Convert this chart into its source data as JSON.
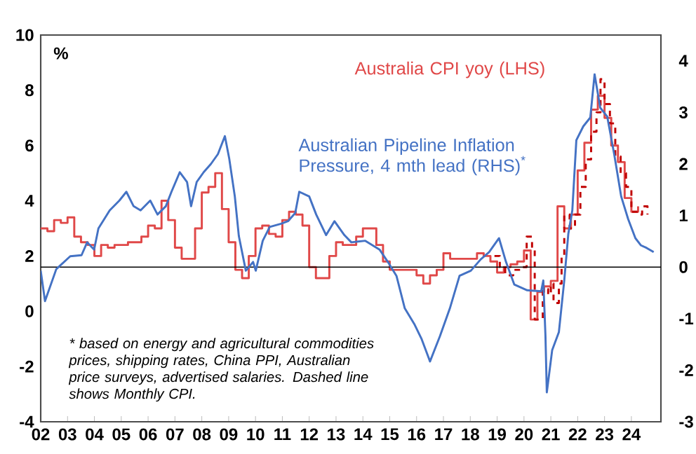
{
  "chart_data": {
    "type": "line",
    "ylabel": "%",
    "annotations": [
      "* based on energy and agricultural commodities prices, shipping rates, China PPI, Australian price surveys, advertised salaries. Dashed line shows Monthly CPI."
    ],
    "xlim": [
      2002,
      2025.1
    ],
    "xticks": [
      {
        "value": 2002,
        "label": "02"
      },
      {
        "value": 2003,
        "label": "03"
      },
      {
        "value": 2004,
        "label": "04"
      },
      {
        "value": 2005,
        "label": "05"
      },
      {
        "value": 2006,
        "label": "06"
      },
      {
        "value": 2007,
        "label": "07"
      },
      {
        "value": 2008,
        "label": "08"
      },
      {
        "value": 2009,
        "label": "09"
      },
      {
        "value": 2010,
        "label": "10"
      },
      {
        "value": 2011,
        "label": "11"
      },
      {
        "value": 2012,
        "label": "12"
      },
      {
        "value": 2013,
        "label": "13"
      },
      {
        "value": 2014,
        "label": "14"
      },
      {
        "value": 2015,
        "label": "15"
      },
      {
        "value": 2016,
        "label": "16"
      },
      {
        "value": 2017,
        "label": "17"
      },
      {
        "value": 2018,
        "label": "18"
      },
      {
        "value": 2019,
        "label": "19"
      },
      {
        "value": 2020,
        "label": "20"
      },
      {
        "value": 2021,
        "label": "21"
      },
      {
        "value": 2022,
        "label": "22"
      },
      {
        "value": 2023,
        "label": "23"
      },
      {
        "value": 2024,
        "label": "24"
      }
    ],
    "ylim": [
      -4,
      10
    ],
    "yticks": [
      -4,
      -2,
      0,
      2,
      4,
      6,
      8,
      10
    ],
    "y2lim": [
      -3,
      4.5
    ],
    "y2ticks": [
      -3,
      -2,
      -1,
      0,
      1,
      2,
      3,
      4
    ],
    "ref_lines": [
      {
        "axis": "y2",
        "value": 0,
        "color": "#000000"
      }
    ],
    "series": [
      {
        "name": "Australia CPI yoy (LHS)",
        "type": "step",
        "color": "#e04848",
        "x": [
          2002.0,
          2002.25,
          2002.5,
          2002.75,
          2003.0,
          2003.25,
          2003.5,
          2003.75,
          2004.0,
          2004.25,
          2004.5,
          2004.75,
          2005.0,
          2005.25,
          2005.5,
          2005.75,
          2006.0,
          2006.25,
          2006.5,
          2006.75,
          2007.0,
          2007.25,
          2007.5,
          2007.75,
          2008.0,
          2008.25,
          2008.5,
          2008.75,
          2009.0,
          2009.25,
          2009.5,
          2009.75,
          2010.0,
          2010.25,
          2010.5,
          2010.75,
          2011.0,
          2011.25,
          2011.5,
          2011.75,
          2012.0,
          2012.25,
          2012.5,
          2012.75,
          2013.0,
          2013.25,
          2013.5,
          2013.75,
          2014.0,
          2014.25,
          2014.5,
          2014.75,
          2015.0,
          2015.25,
          2015.5,
          2015.75,
          2016.0,
          2016.25,
          2016.5,
          2016.75,
          2017.0,
          2017.25,
          2017.5,
          2017.75,
          2018.0,
          2018.25,
          2018.5,
          2018.75,
          2019.0,
          2019.25,
          2019.5,
          2019.75,
          2020.0,
          2020.25,
          2020.5,
          2020.75,
          2021.0,
          2021.25,
          2021.5,
          2021.75,
          2022.0,
          2022.25,
          2022.5,
          2022.75,
          2023.0,
          2023.25,
          2023.5,
          2023.75,
          2024.0,
          2024.25
        ],
        "values": [
          3.0,
          2.9,
          3.3,
          3.2,
          3.4,
          2.7,
          2.5,
          2.4,
          2.0,
          2.4,
          2.3,
          2.4,
          2.4,
          2.5,
          2.5,
          2.7,
          3.1,
          3.0,
          4.0,
          3.3,
          2.3,
          1.9,
          1.9,
          3.0,
          4.3,
          4.5,
          5.0,
          3.7,
          2.5,
          1.5,
          1.2,
          2.0,
          3.0,
          3.1,
          2.8,
          2.7,
          3.3,
          3.6,
          3.5,
          3.1,
          1.6,
          1.2,
          1.2,
          2.0,
          2.5,
          2.4,
          2.4,
          2.7,
          3.0,
          3.0,
          2.4,
          1.8,
          1.5,
          1.5,
          1.5,
          1.5,
          1.3,
          1.0,
          1.3,
          1.5,
          2.1,
          1.9,
          1.9,
          1.9,
          1.9,
          2.1,
          2.0,
          1.8,
          1.4,
          1.6,
          1.7,
          1.8,
          2.2,
          -0.3,
          0.7,
          0.9,
          1.1,
          3.8,
          3.0,
          3.5,
          5.1,
          6.1,
          7.3,
          7.8,
          7.0,
          6.0,
          5.4,
          4.1,
          3.6,
          3.8
        ]
      },
      {
        "type": "step",
        "line_style": "dashed",
        "color": "#c00000",
        "x": [
          2018.9,
          2019.1,
          2019.3,
          2019.6,
          2019.9,
          2020.1,
          2020.3,
          2020.4,
          2020.6,
          2020.7,
          2020.9,
          2021.0,
          2021.1,
          2021.3,
          2021.4,
          2021.5,
          2021.7,
          2021.9,
          2022.1,
          2022.3,
          2022.5,
          2022.7,
          2022.85,
          2023.0,
          2023.2,
          2023.4,
          2023.6,
          2023.8,
          2024.0,
          2024.2,
          2024.4,
          2024.6
        ],
        "values": [
          2.0,
          1.6,
          1.3,
          1.5,
          1.6,
          2.7,
          2.2,
          -0.3,
          -0.3,
          0.8,
          0.6,
          1.0,
          0.3,
          1.0,
          2.0,
          3.5,
          3.0,
          3.5,
          4.5,
          5.5,
          6.5,
          7.2,
          8.4,
          7.5,
          6.8,
          5.6,
          5.0,
          4.5,
          3.6,
          3.5,
          3.8,
          3.5
        ]
      },
      {
        "name": "Australian Pipeline Inflation Pressure, 4 mth lead (RHS)$^{*}$",
        "type": "line",
        "axis": "y2",
        "color": "#4472c4",
        "x": [
          2002.0,
          2002.16,
          2002.58,
          2003.1,
          2003.52,
          2003.73,
          2003.99,
          2004.15,
          2004.57,
          2004.93,
          2005.19,
          2005.46,
          2005.72,
          2006.08,
          2006.35,
          2006.66,
          2006.87,
          2007.18,
          2007.45,
          2007.6,
          2007.81,
          2008.07,
          2008.34,
          2008.6,
          2008.86,
          2009.02,
          2009.23,
          2009.38,
          2009.64,
          2009.91,
          2010.01,
          2010.27,
          2010.53,
          2010.95,
          2011.21,
          2011.48,
          2011.63,
          2012.0,
          2012.26,
          2012.63,
          2012.94,
          2013.31,
          2013.57,
          2014.09,
          2014.62,
          2014.93,
          2015.25,
          2015.56,
          2015.93,
          2016.19,
          2016.5,
          2016.87,
          2017.24,
          2017.6,
          2018.02,
          2018.39,
          2018.7,
          2019.07,
          2019.33,
          2019.64,
          2020.12,
          2020.64,
          2020.72,
          2020.8,
          2020.85,
          2021.05,
          2021.3,
          2021.5,
          2021.65,
          2021.8,
          2021.95,
          2022.21,
          2022.47,
          2022.63,
          2022.84,
          2023.1,
          2023.36,
          2023.62,
          2023.88,
          2024.15,
          2024.36,
          2024.57,
          2024.83
        ],
        "values": [
          -0.07,
          -0.66,
          -0.04,
          0.21,
          0.23,
          0.48,
          0.34,
          0.75,
          1.1,
          1.29,
          1.46,
          1.18,
          1.1,
          1.29,
          1.02,
          1.18,
          1.46,
          1.84,
          1.65,
          1.18,
          1.65,
          1.84,
          2.0,
          2.19,
          2.54,
          2.11,
          1.37,
          0.6,
          -0.07,
          0.1,
          -0.07,
          0.51,
          0.78,
          0.84,
          0.89,
          1.05,
          1.46,
          1.37,
          1.02,
          0.62,
          0.89,
          0.62,
          0.48,
          0.51,
          0.34,
          0.1,
          -0.17,
          -0.8,
          -1.12,
          -1.4,
          -1.83,
          -1.34,
          -0.8,
          -0.17,
          -0.07,
          0.15,
          0.29,
          0.56,
          0.1,
          -0.34,
          -0.45,
          -0.47,
          -0.26,
          -1.34,
          -2.43,
          -1.61,
          -1.26,
          -0.26,
          0.64,
          1.1,
          2.46,
          2.73,
          2.9,
          3.74,
          3.09,
          2.92,
          2.19,
          1.37,
          0.93,
          0.56,
          0.42,
          0.37,
          0.29
        ]
      }
    ]
  }
}
